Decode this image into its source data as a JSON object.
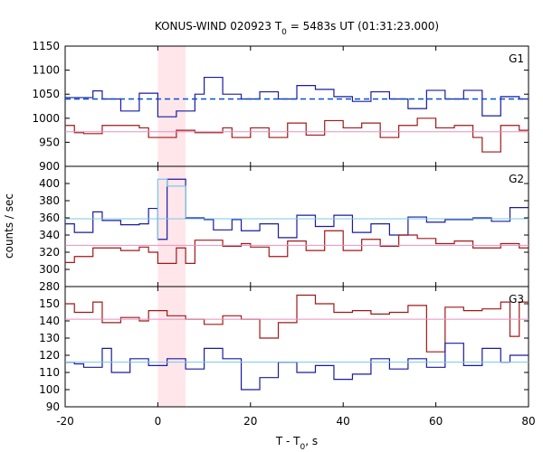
{
  "chart_data": {
    "type": "line",
    "title": "KONUS-WIND 020923 T",
    "title_sub": "0",
    "title_rest": " = 5483s UT (01:31:23.000)",
    "xlabel": "T - T",
    "xlabel_sub": "0",
    "xlabel_rest": ", s",
    "ylabel": "counts / sec",
    "xlim": [
      -20,
      80
    ],
    "xticks": [
      "-20",
      "0",
      "20",
      "40",
      "60",
      "80"
    ],
    "highlight_band": {
      "x_start": 0,
      "x_end": 6,
      "color": "#ffe6ea"
    },
    "colors": {
      "upper_series": "#1a1aa0",
      "lower_series": "#a01818",
      "g1_upper_mean": "#0050d0",
      "g1_lower_mean": "#e890c0",
      "cyan_mean": "#78c8e8",
      "pink_mean": "#e890c0",
      "g2_highlight": "#78c8e8"
    },
    "panels": [
      {
        "label": "G1",
        "ylim": [
          900,
          1150
        ],
        "yticks": [
          "900",
          "950",
          "1000",
          "1050",
          "1100",
          "1150"
        ],
        "bin_edges": [
          -20,
          -18,
          -16,
          -14,
          -12,
          -10,
          -8,
          -6,
          -4,
          -2,
          0,
          2,
          4,
          6,
          8,
          10,
          12,
          14,
          16,
          18,
          20,
          22,
          24,
          26,
          28,
          30,
          32,
          34,
          36,
          38,
          40,
          42,
          44,
          46,
          48,
          50,
          52,
          54,
          56,
          58,
          60,
          62,
          64,
          66,
          68,
          70,
          72,
          74,
          76,
          78,
          80
        ],
        "series": [
          {
            "name": "upper",
            "values": [
              1043,
              1043,
              1043,
              1057,
              1040,
              1040,
              1015,
              1015,
              1052,
              1052,
              1003,
              1003,
              1015,
              1015,
              1050,
              1085,
              1085,
              1050,
              1050,
              1040,
              1040,
              1055,
              1055,
              1040,
              1040,
              1068,
              1068,
              1060,
              1060,
              1045,
              1045,
              1035,
              1035,
              1055,
              1055,
              1040,
              1040,
              1020,
              1020,
              1058,
              1058,
              1040,
              1040,
              1058,
              1058,
              1005,
              1005,
              1045,
              1045,
              1040
            ],
            "mean": 1040
          },
          {
            "name": "lower",
            "values": [
              985,
              970,
              968,
              968,
              985,
              985,
              985,
              985,
              980,
              960,
              960,
              960,
              975,
              975,
              970,
              970,
              970,
              980,
              960,
              960,
              980,
              980,
              960,
              960,
              990,
              990,
              965,
              965,
              995,
              995,
              980,
              980,
              990,
              990,
              960,
              960,
              985,
              985,
              1000,
              1000,
              980,
              980,
              985,
              985,
              960,
              930,
              930,
              985,
              985,
              975
            ],
            "mean": 972
          }
        ]
      },
      {
        "label": "G2",
        "ylim": [
          280,
          420
        ],
        "yticks": [
          "280",
          "300",
          "320",
          "340",
          "360",
          "380",
          "400"
        ],
        "bin_edges": [
          -20,
          -18,
          -16,
          -14,
          -12,
          -10,
          -8,
          -6,
          -4,
          -2,
          0,
          2,
          4,
          6,
          8,
          10,
          12,
          14,
          16,
          18,
          20,
          22,
          24,
          26,
          28,
          30,
          32,
          34,
          36,
          38,
          40,
          42,
          44,
          46,
          48,
          50,
          52,
          54,
          56,
          58,
          60,
          62,
          64,
          66,
          68,
          70,
          72,
          74,
          76,
          78,
          80
        ],
        "series": [
          {
            "name": "upper",
            "values": [
              353,
              343,
              343,
              367,
              357,
              357,
              352,
              352,
              353,
              371,
              335,
              405,
              405,
              360,
              360,
              358,
              346,
              346,
              358,
              345,
              345,
              353,
              353,
              337,
              337,
              363,
              363,
              350,
              350,
              363,
              363,
              343,
              343,
              353,
              353,
              340,
              340,
              361,
              361,
              355,
              355,
              358,
              358,
              358,
              360,
              360,
              356,
              356,
              372,
              372
            ],
            "mean": 359
          },
          {
            "name": "lower",
            "values": [
              308,
              315,
              315,
              325,
              325,
              325,
              322,
              322,
              326,
              320,
              307,
              307,
              325,
              307,
              334,
              334,
              334,
              327,
              327,
              330,
              326,
              326,
              315,
              315,
              333,
              333,
              322,
              322,
              345,
              345,
              322,
              322,
              335,
              335,
              327,
              327,
              340,
              340,
              336,
              336,
              330,
              330,
              333,
              333,
              325,
              325,
              325,
              330,
              330,
              325
            ],
            "mean": 328
          },
          {
            "name": "highlight",
            "values": [],
            "mean": null
          }
        ],
        "highlight_step": [
          {
            "x0": 0,
            "x1": 2,
            "y": 405
          },
          {
            "x0": 2,
            "x1": 6,
            "y": 397
          }
        ]
      },
      {
        "label": "G3",
        "ylim": [
          90,
          160
        ],
        "yticks": [
          "90",
          "100",
          "110",
          "120",
          "130",
          "140",
          "150"
        ],
        "bin_edges": [
          -20,
          -18,
          -16,
          -14,
          -12,
          -10,
          -8,
          -6,
          -4,
          -2,
          0,
          2,
          4,
          6,
          8,
          10,
          12,
          14,
          16,
          18,
          20,
          22,
          24,
          26,
          28,
          30,
          32,
          34,
          36,
          38,
          40,
          42,
          44,
          46,
          48,
          50,
          52,
          54,
          56,
          58,
          60,
          62,
          64,
          66,
          68,
          70,
          72,
          74,
          76,
          78,
          80
        ],
        "series": [
          {
            "name": "upper",
            "values": [
              150,
              145,
              145,
              151,
              139,
              139,
              142,
              142,
              140,
              146,
              146,
              143,
              143,
              141,
              141,
              138,
              138,
              143,
              143,
              141,
              141,
              130,
              130,
              139,
              139,
              155,
              155,
              150,
              150,
              145,
              145,
              146,
              146,
              144,
              144,
              145,
              145,
              149,
              149,
              122,
              122,
              148,
              148,
              146,
              146,
              147,
              147,
              151,
              131,
              151
            ],
            "mean": 141
          },
          {
            "name": "lower",
            "values": [
              116,
              115,
              113,
              113,
              124,
              110,
              110,
              118,
              118,
              114,
              114,
              118,
              118,
              112,
              112,
              124,
              124,
              118,
              118,
              100,
              100,
              107,
              107,
              116,
              116,
              110,
              110,
              114,
              114,
              106,
              106,
              109,
              109,
              118,
              118,
              112,
              112,
              118,
              118,
              113,
              113,
              127,
              127,
              114,
              114,
              124,
              124,
              116,
              120,
              120
            ],
            "mean": 116
          }
        ]
      }
    ]
  }
}
